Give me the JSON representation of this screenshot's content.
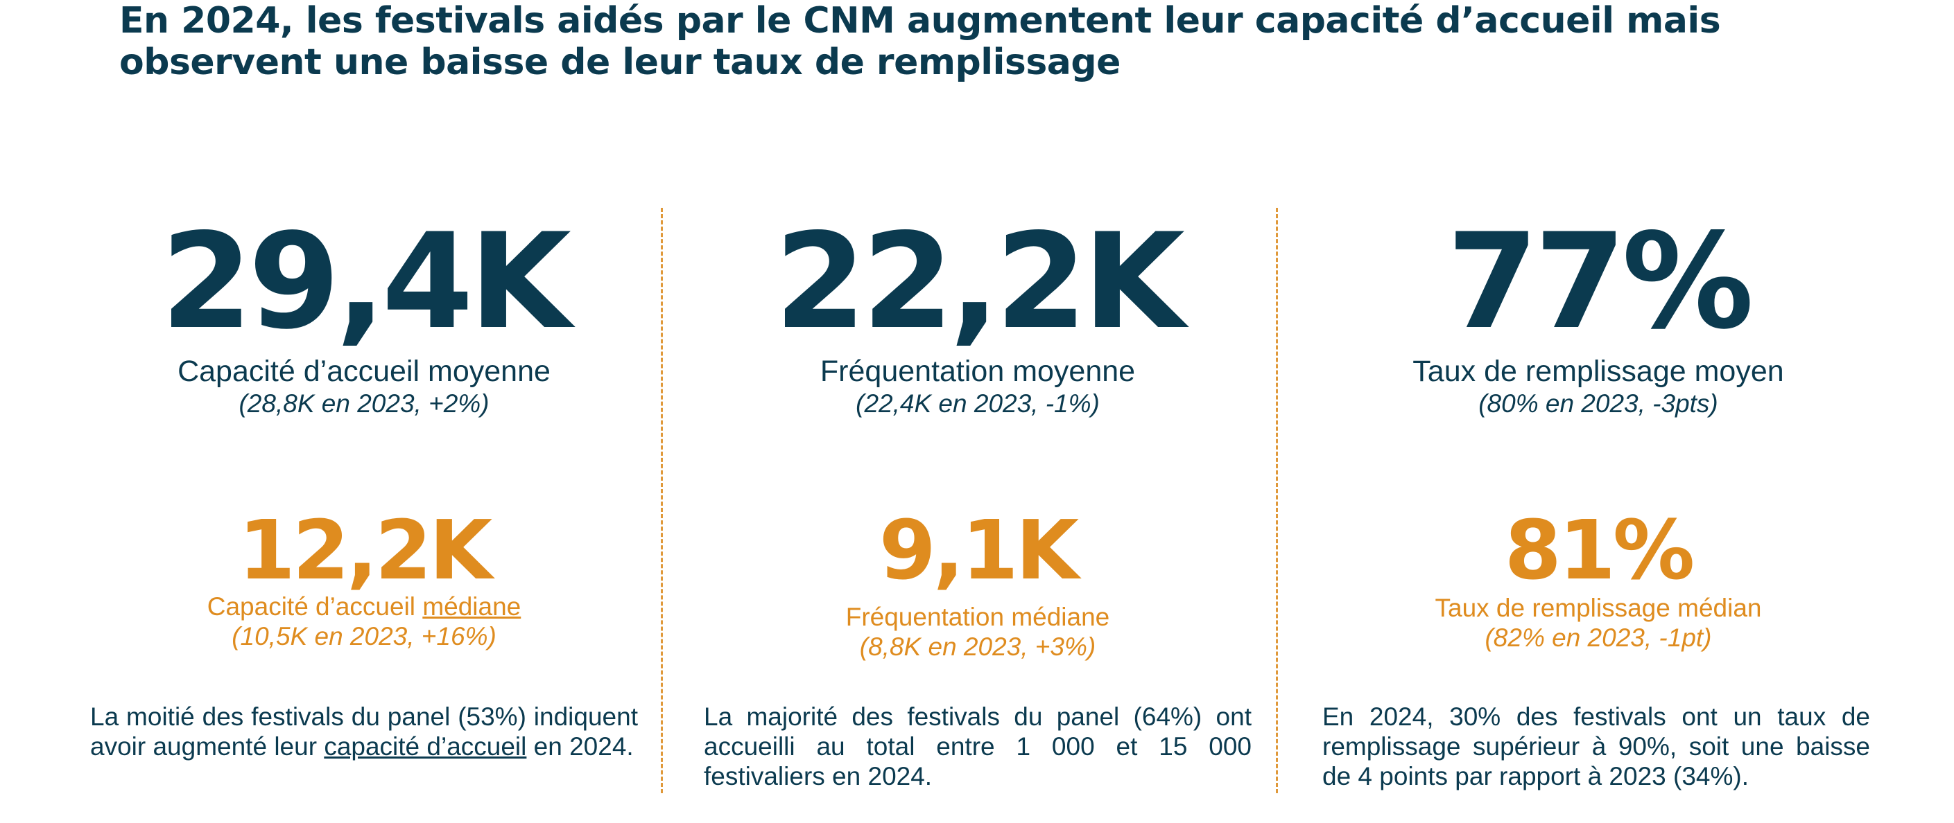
{
  "title": "En 2024, les festivals aidés par le CNM augmentent leur capacité d’accueil mais observent une baisse de leur taux de remplissage",
  "colors": {
    "navy": "#0b3a4f",
    "orange": "#df8c1f",
    "divider": "#e0993a"
  },
  "columns": [
    {
      "big_value": "29,4K",
      "big_label": "Capacité d’accueil moyenne",
      "big_sub": "(28,8K en 2023, +2%)",
      "median_value": "12,2K",
      "median_label_prefix": "Capacité d’accueil ",
      "median_label_emph": "médiane",
      "median_sub": "(10,5K en 2023, +16%)",
      "para_before": "La moitié des festivals du panel (53%) indiquent avoir augmenté leur ",
      "para_link": "capacité d’accueil",
      "para_after": " en 2024."
    },
    {
      "big_value": "22,2K",
      "big_label": "Fréquentation moyenne",
      "big_sub": "(22,4K en 2023, -1%)",
      "median_value": "9,1K",
      "median_label": "Fréquentation médiane",
      "median_sub": "(8,8K en 2023, +3%)",
      "para": "La majorité des festivals du panel (64%) ont accueilli au total entre 1 000 et 15 000 festivaliers en 2024."
    },
    {
      "big_value": "77%",
      "big_label": "Taux de remplissage moyen",
      "big_sub": "(80% en 2023, -3pts)",
      "median_value": "81%",
      "median_label": "Taux de remplissage médian",
      "median_sub": "(82% en 2023, -1pt)",
      "para": "En 2024, 30% des festivals ont un taux de remplissage supérieur à 90%, soit une baisse de 4 points par rapport à 2023 (34%)."
    }
  ]
}
